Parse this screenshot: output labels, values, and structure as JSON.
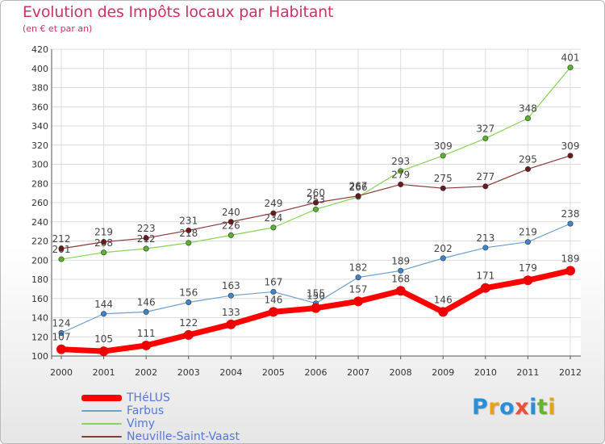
{
  "header": {
    "title": "Evolution des Impôts locaux par Habitant",
    "subtitle": "(en € et par an)"
  },
  "brand": {
    "letters": [
      {
        "ch": "P",
        "color": "#2a8fd8"
      },
      {
        "ch": "r",
        "color": "#e8a21a"
      },
      {
        "ch": "o",
        "color": "#2a8fd8"
      },
      {
        "ch": "x",
        "color": "#e8503a"
      },
      {
        "ch": "i",
        "color": "#2a8fd8"
      },
      {
        "ch": "t",
        "color": "#66b32e"
      },
      {
        "ch": "i",
        "color": "#e8a21a"
      }
    ]
  },
  "chart_data": {
    "type": "line",
    "x": [
      "2000",
      "2001",
      "2002",
      "2003",
      "2004",
      "2005",
      "2006",
      "2007",
      "2008",
      "2009",
      "2010",
      "2011",
      "2012"
    ],
    "ylim": [
      100,
      420
    ],
    "yticks": [
      100,
      120,
      140,
      160,
      180,
      200,
      220,
      240,
      260,
      280,
      300,
      320,
      340,
      360,
      380,
      400,
      420
    ],
    "grid": true,
    "legend_position": "bottom-left",
    "series": [
      {
        "name": "Vimy",
        "color": "#88d455",
        "marker": "#5ab42a",
        "width": 1.2,
        "values": [
          201,
          208,
          212,
          218,
          226,
          234,
          253,
          266,
          293,
          309,
          327,
          348,
          401
        ]
      },
      {
        "name": "Neuville-Saint-Vaast",
        "color": "#8a3a3a",
        "marker": "#6a1a1a",
        "width": 1.2,
        "values": [
          212,
          219,
          223,
          231,
          240,
          249,
          260,
          267,
          279,
          275,
          277,
          295,
          309
        ]
      },
      {
        "name": "Farbus",
        "color": "#6b9fd0",
        "marker": "#3d86cc",
        "width": 1.2,
        "values": [
          124,
          144,
          146,
          156,
          163,
          167,
          155,
          182,
          189,
          202,
          213,
          219,
          238
        ]
      },
      {
        "name": "THéLUS",
        "color": "#ff0000",
        "marker": "#ee0000",
        "width": 7,
        "values": [
          107,
          105,
          111,
          122,
          133,
          146,
          150,
          157,
          168,
          146,
          171,
          179,
          189
        ]
      }
    ]
  }
}
